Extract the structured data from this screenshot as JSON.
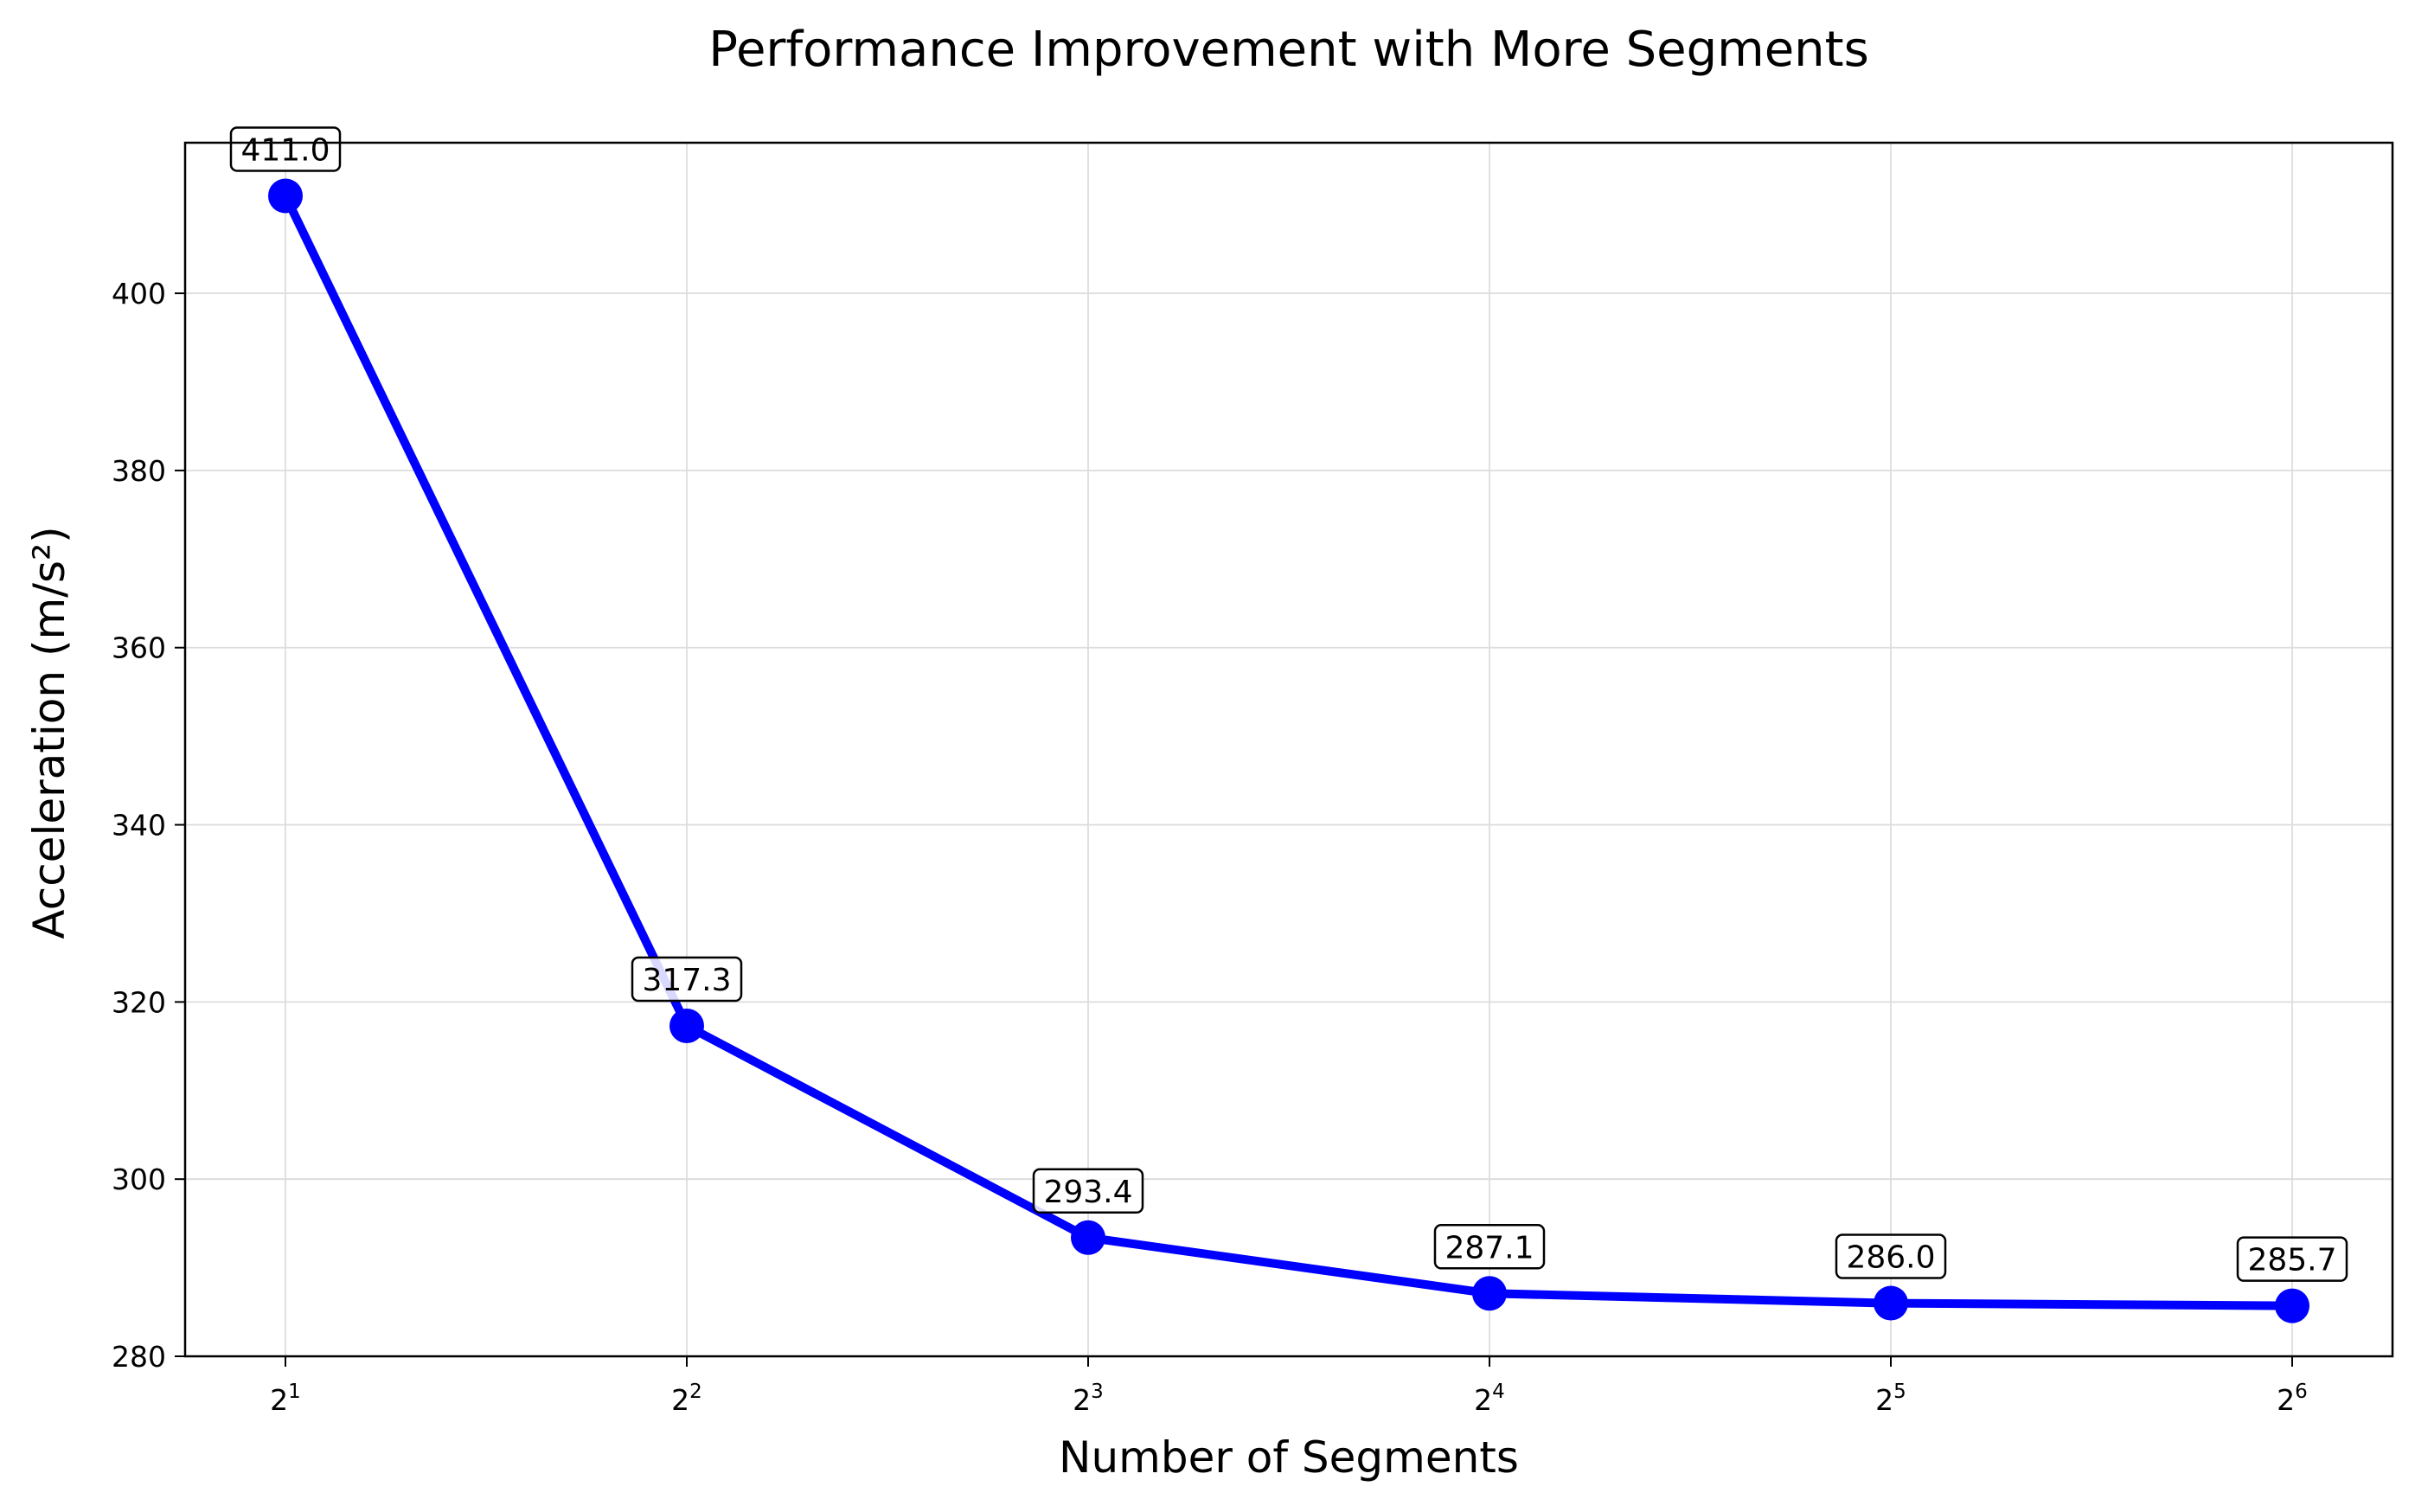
{
  "chart_data": {
    "type": "line",
    "title": "Performance Improvement with More Segments",
    "xlabel": "Number of Segments",
    "ylabel": "Acceleration (m/s²)",
    "x_scale": "log2",
    "x": [
      2,
      4,
      8,
      16,
      32,
      64
    ],
    "x_tick_labels": [
      {
        "base": "2",
        "exp": "1"
      },
      {
        "base": "2",
        "exp": "2"
      },
      {
        "base": "2",
        "exp": "3"
      },
      {
        "base": "2",
        "exp": "4"
      },
      {
        "base": "2",
        "exp": "5"
      },
      {
        "base": "2",
        "exp": "6"
      }
    ],
    "series": [
      {
        "values": [
          411.0,
          317.3,
          293.4,
          287.1,
          286.0,
          285.7
        ],
        "color": "#0000ff",
        "marker": "circle"
      }
    ],
    "data_labels": [
      "411.0",
      "317.3",
      "293.4",
      "287.1",
      "286.0",
      "285.7"
    ],
    "ylim": [
      280,
      417
    ],
    "y_ticks": [
      280,
      300,
      320,
      340,
      360,
      380,
      400
    ],
    "grid": true,
    "legend": false
  }
}
